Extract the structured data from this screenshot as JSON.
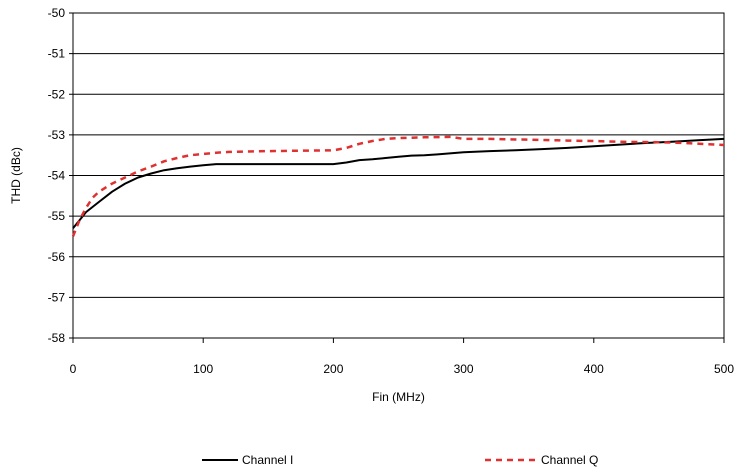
{
  "chart_data": {
    "type": "line",
    "title": "",
    "xlabel": "Fin (MHz)",
    "ylabel": "THD (dBc)",
    "xlim": [
      0,
      500
    ],
    "ylim": [
      -58,
      -50
    ],
    "xticks": [
      0,
      100,
      200,
      300,
      400,
      500
    ],
    "yticks": [
      -58,
      -57,
      -56,
      -55,
      -54,
      -53,
      -52,
      -51,
      -50
    ],
    "xtick_labels": [
      "0",
      "100",
      "200",
      "300",
      "400",
      "500"
    ],
    "ytick_labels": [
      "-58",
      "-57",
      "-56",
      "-55",
      "-54",
      "-53",
      "-52",
      "-51",
      "-50"
    ],
    "grid": "horizontal",
    "legend_position": "bottom",
    "series": [
      {
        "name": "Channel I",
        "color": "#000000",
        "style": "solid",
        "x": [
          0,
          5,
          10,
          20,
          30,
          40,
          50,
          60,
          70,
          80,
          90,
          100,
          110,
          120,
          150,
          200,
          210,
          220,
          230,
          240,
          250,
          260,
          270,
          280,
          300,
          320,
          340,
          360,
          380,
          400,
          420,
          440,
          460,
          480,
          500
        ],
        "y": [
          -55.3,
          -55.1,
          -54.9,
          -54.65,
          -54.4,
          -54.2,
          -54.05,
          -53.95,
          -53.87,
          -53.82,
          -53.78,
          -53.75,
          -53.72,
          -53.72,
          -53.72,
          -53.72,
          -53.68,
          -53.62,
          -53.6,
          -53.57,
          -53.54,
          -53.51,
          -53.5,
          -53.48,
          -53.43,
          -53.4,
          -53.38,
          -53.35,
          -53.32,
          -53.28,
          -53.24,
          -53.2,
          -53.17,
          -53.13,
          -53.1
        ]
      },
      {
        "name": "Channel Q",
        "color": "#e03030",
        "style": "dashed",
        "x": [
          0,
          5,
          10,
          15,
          20,
          30,
          40,
          50,
          60,
          70,
          80,
          90,
          100,
          110,
          120,
          150,
          200,
          210,
          220,
          230,
          240,
          250,
          270,
          290,
          300,
          320,
          350,
          380,
          400,
          420,
          450,
          470,
          500
        ],
        "y": [
          -55.5,
          -55.1,
          -54.8,
          -54.55,
          -54.4,
          -54.2,
          -54.05,
          -53.9,
          -53.78,
          -53.65,
          -53.57,
          -53.5,
          -53.47,
          -53.44,
          -53.42,
          -53.4,
          -53.38,
          -53.32,
          -53.22,
          -53.15,
          -53.1,
          -53.08,
          -53.06,
          -53.05,
          -53.1,
          -53.1,
          -53.12,
          -53.14,
          -53.15,
          -53.17,
          -53.18,
          -53.2,
          -53.25
        ]
      }
    ]
  }
}
